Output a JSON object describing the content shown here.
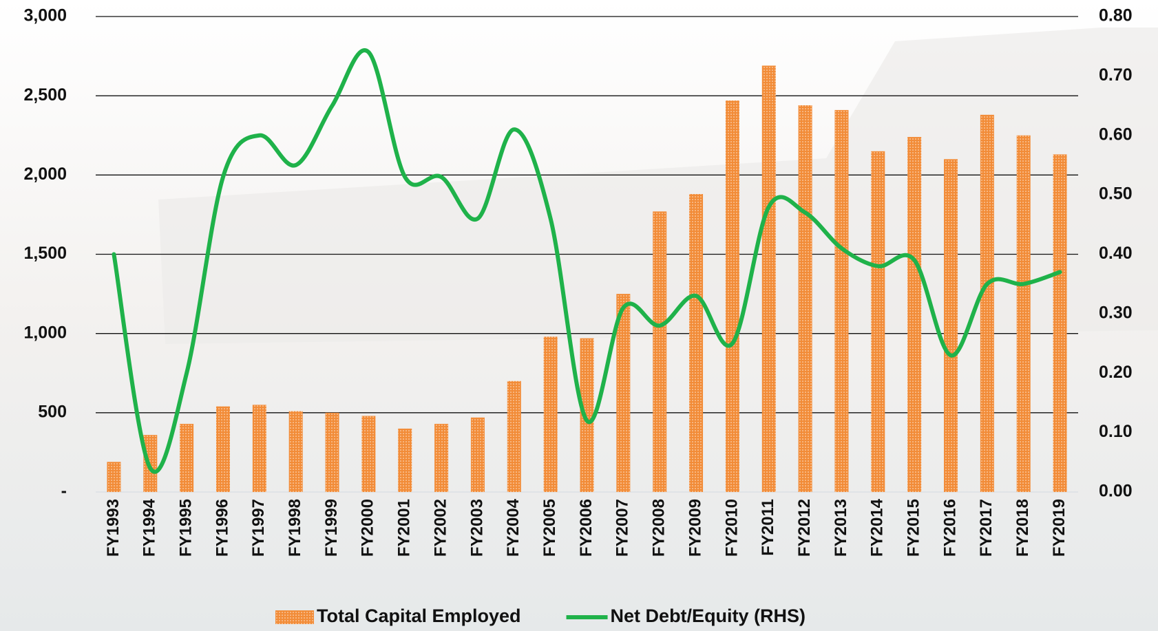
{
  "chart_data": {
    "type": "bar+line",
    "categories": [
      "FY1993",
      "FY1994",
      "FY1995",
      "FY1996",
      "FY1997",
      "FY1998",
      "FY1999",
      "FY2000",
      "FY2001",
      "FY2002",
      "FY2003",
      "FY2004",
      "FY2005",
      "FY2006",
      "FY2007",
      "FY2008",
      "FY2009",
      "FY2010",
      "FY2011",
      "FY2012",
      "FY2013",
      "FY2014",
      "FY2015",
      "FY2016",
      "FY2017",
      "FY2018",
      "FY2019"
    ],
    "series": [
      {
        "name": "Total Capital Employed",
        "type": "bar",
        "color": "#f28c38",
        "values": [
          190,
          360,
          430,
          540,
          550,
          510,
          500,
          480,
          400,
          430,
          470,
          700,
          980,
          970,
          1250,
          1770,
          1880,
          2470,
          2690,
          2440,
          2410,
          2150,
          2240,
          2100,
          2380,
          2250,
          2130
        ]
      },
      {
        "name": "Net Debt/Equity (RHS)",
        "type": "line",
        "axis": "y2",
        "color": "#1fb24a",
        "values": [
          0.4,
          0.04,
          0.2,
          0.53,
          0.6,
          0.55,
          0.65,
          0.74,
          0.53,
          0.53,
          0.46,
          0.61,
          0.46,
          0.12,
          0.31,
          0.28,
          0.33,
          0.25,
          0.48,
          0.47,
          0.41,
          0.38,
          0.39,
          0.23,
          0.35,
          0.35,
          0.37
        ]
      }
    ],
    "ylim": [
      0,
      3000
    ],
    "yticks": [
      {
        "value": 0,
        "label": "-"
      },
      500,
      {
        "value": 1000,
        "label": "1,000"
      },
      {
        "value": 1500,
        "label": "1,500"
      },
      {
        "value": 2000,
        "label": "2,000"
      },
      {
        "value": 2500,
        "label": "2,500"
      },
      {
        "value": 3000,
        "label": "3,000"
      }
    ],
    "y2lim": [
      0,
      0.8
    ],
    "y2ticks": [
      {
        "value": 0,
        "label": "0.00"
      },
      {
        "value": 0.1,
        "label": "0.10"
      },
      {
        "value": 0.2,
        "label": "0.20"
      },
      {
        "value": 0.3,
        "label": "0.30"
      },
      {
        "value": 0.4,
        "label": "0.40"
      },
      {
        "value": 0.5,
        "label": "0.50"
      },
      {
        "value": 0.6,
        "label": "0.60"
      },
      {
        "value": 0.7,
        "label": "0.70"
      },
      {
        "value": 0.8,
        "label": "0.80"
      }
    ],
    "grid": true,
    "legend": "bottom"
  }
}
